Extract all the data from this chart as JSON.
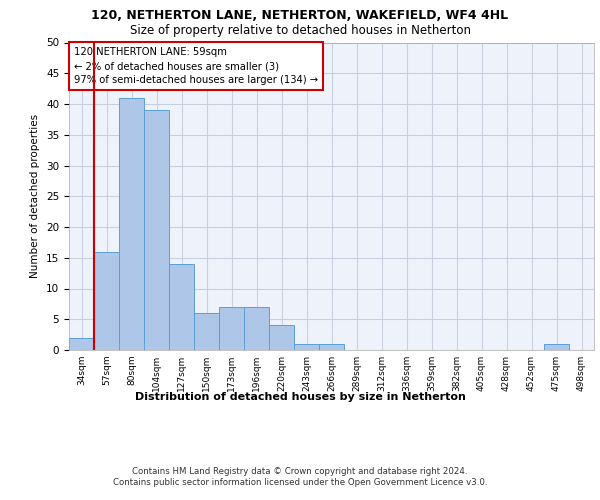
{
  "title1": "120, NETHERTON LANE, NETHERTON, WAKEFIELD, WF4 4HL",
  "title2": "Size of property relative to detached houses in Netherton",
  "xlabel": "Distribution of detached houses by size in Netherton",
  "ylabel": "Number of detached properties",
  "categories": [
    "34sqm",
    "57sqm",
    "80sqm",
    "104sqm",
    "127sqm",
    "150sqm",
    "173sqm",
    "196sqm",
    "220sqm",
    "243sqm",
    "266sqm",
    "289sqm",
    "312sqm",
    "336sqm",
    "359sqm",
    "382sqm",
    "405sqm",
    "428sqm",
    "452sqm",
    "475sqm",
    "498sqm"
  ],
  "values": [
    2,
    16,
    41,
    39,
    14,
    6,
    7,
    7,
    4,
    1,
    1,
    0,
    0,
    0,
    0,
    0,
    0,
    0,
    0,
    1,
    0
  ],
  "bar_color": "#aec6e8",
  "bar_edge_color": "#5a9fd4",
  "ylim": [
    0,
    50
  ],
  "yticks": [
    0,
    5,
    10,
    15,
    20,
    25,
    30,
    35,
    40,
    45,
    50
  ],
  "grid_color": "#c8d0e0",
  "background_color": "#eef2fb",
  "footer_text": "Contains HM Land Registry data © Crown copyright and database right 2024.\nContains public sector information licensed under the Open Government Licence v3.0.",
  "red_line_color": "#cc0000",
  "box_edge_color": "#cc0000",
  "annotation_box_text": "120 NETHERTON LANE: 59sqm\n← 2% of detached houses are smaller (3)\n97% of semi-detached houses are larger (134) →"
}
